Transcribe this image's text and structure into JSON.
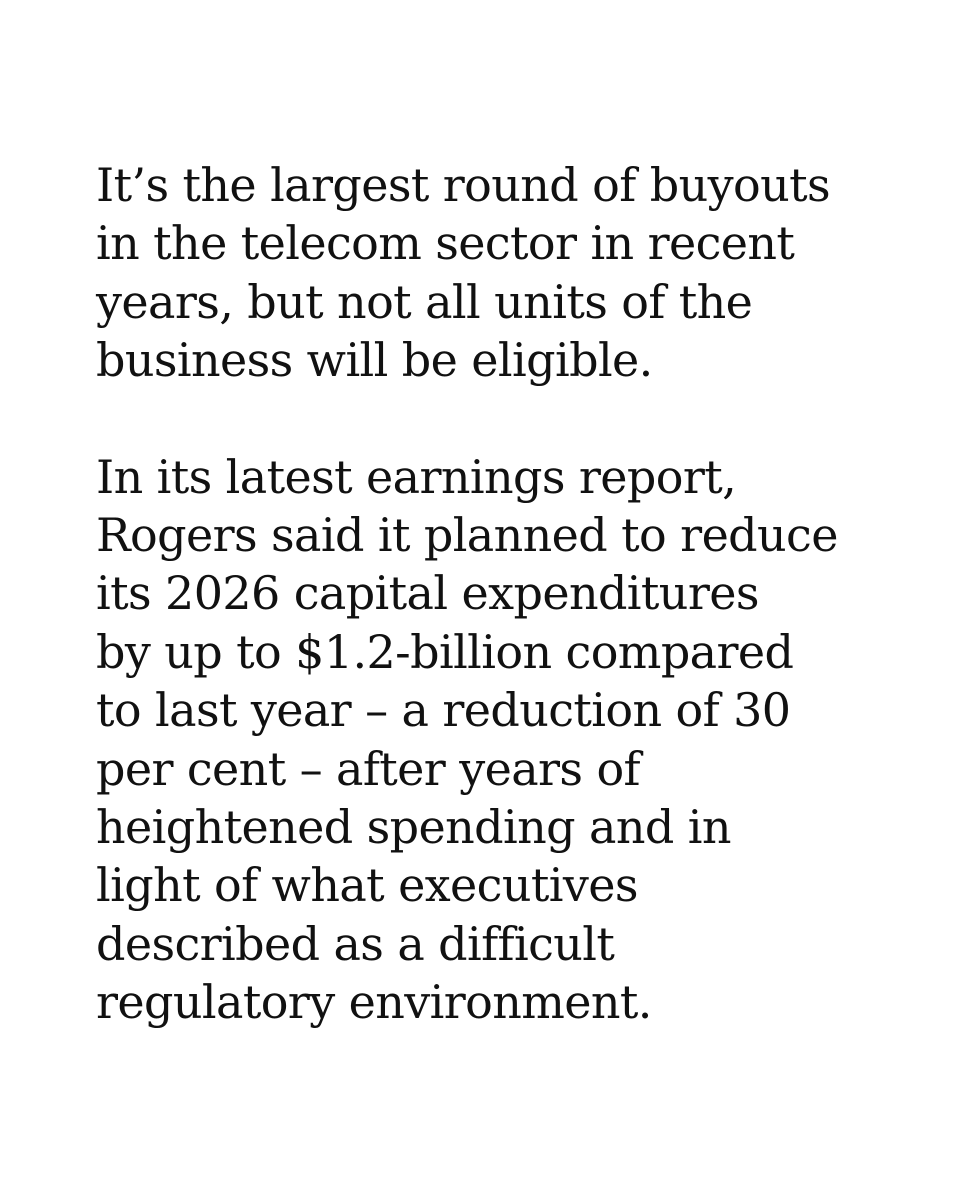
{
  "paragraphs": [
    {
      "lines": [
        "It’s the largest round of buyouts",
        "in the telecom sector in recent",
        "years, but not all units of the",
        "business will be eligible."
      ]
    },
    {
      "lines": [
        "In its latest earnings report,",
        "Rogers said it planned to reduce",
        "its 2026 capital expenditures",
        "by up to $1.2-billion compared",
        "to last year – a reduction of 30",
        "per cent – after years of",
        "heightened spending and in",
        "light of what executives",
        "described as a difficult",
        "regulatory environment."
      ]
    }
  ]
}
